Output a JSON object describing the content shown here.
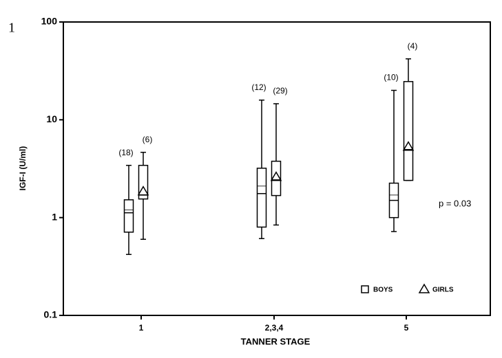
{
  "chart_data": {
    "type": "box",
    "panel_label": "1",
    "xlabel": "TANNER STAGE",
    "ylabel": "IGF-I (U/ml)",
    "categories": [
      "1",
      "2,3,4",
      "5"
    ],
    "log_y": true,
    "ylim": [
      0.1,
      100
    ],
    "yticks": [
      0.1,
      1,
      10,
      100
    ],
    "series": [
      {
        "name": "BOYS",
        "marker": "square",
        "color": "#000000",
        "count_labels": [
          "(18)",
          "(12)",
          "(10)"
        ],
        "whisker_low": [
          0.42,
          0.61,
          0.72
        ],
        "q1": [
          0.71,
          0.8,
          1.0
        ],
        "median": [
          1.12,
          1.76,
          1.5
        ],
        "q3": [
          1.52,
          3.2,
          2.25
        ],
        "whisker_high": [
          3.42,
          15.9,
          20
        ],
        "mean": [
          1.2,
          2.1,
          1.7
        ]
      },
      {
        "name": "GIRLS",
        "marker": "triangle",
        "color": "#000000",
        "count_labels": [
          "(6)",
          "(29)",
          "(4)"
        ],
        "whisker_low": [
          0.6,
          0.84,
          2.4
        ],
        "q1": [
          1.55,
          1.68,
          2.4
        ],
        "median": [
          1.7,
          2.43,
          4.96
        ],
        "q3": [
          3.42,
          3.77,
          24.6
        ],
        "whisker_high": [
          4.65,
          14.6,
          42
        ],
        "mean": [
          1.85,
          2.6,
          5.3
        ]
      }
    ],
    "annotations": [
      "p = 0.03"
    ],
    "legend_position": "lower right"
  }
}
